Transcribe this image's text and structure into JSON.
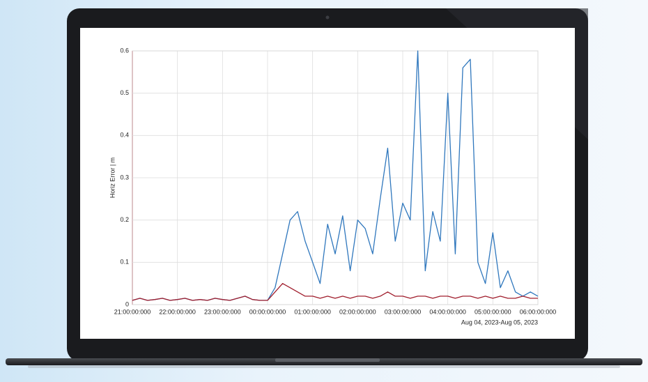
{
  "chart_data": {
    "type": "line",
    "ylabel": "Horiz Error | m",
    "date_range": "Aug 04, 2023-Aug 05, 2023",
    "x": [
      "21:00:00:000",
      "21:10:00:000",
      "21:20:00:000",
      "21:30:00:000",
      "21:40:00:000",
      "21:50:00:000",
      "22:00:00:000",
      "22:10:00:000",
      "22:20:00:000",
      "22:30:00:000",
      "22:40:00:000",
      "22:50:00:000",
      "23:00:00:000",
      "23:10:00:000",
      "23:20:00:000",
      "23:30:00:000",
      "23:40:00:000",
      "23:50:00:000",
      "00:00:00:000",
      "00:10:00:000",
      "00:20:00:000",
      "00:30:00:000",
      "00:40:00:000",
      "00:50:00:000",
      "01:00:00:000",
      "01:10:00:000",
      "01:20:00:000",
      "01:30:00:000",
      "01:40:00:000",
      "01:50:00:000",
      "02:00:00:000",
      "02:10:00:000",
      "02:20:00:000",
      "02:30:00:000",
      "02:40:00:000",
      "02:50:00:000",
      "03:00:00:000",
      "03:10:00:000",
      "03:20:00:000",
      "03:30:00:000",
      "03:40:00:000",
      "03:50:00:000",
      "04:00:00:000",
      "04:10:00:000",
      "04:20:00:000",
      "04:30:00:000",
      "04:40:00:000",
      "04:50:00:000",
      "05:00:00:000",
      "05:10:00:000",
      "05:20:00:000",
      "05:30:00:000",
      "05:40:00:000",
      "05:50:00:000",
      "06:00:00:000"
    ],
    "xticks": [
      "21:00:00:000",
      "22:00:00:000",
      "23:00:00:000",
      "00:00:00:000",
      "01:00:00:000",
      "02:00:00:000",
      "03:00:00:000",
      "04:00:00:000",
      "05:00:00:000",
      "06:00:00:000"
    ],
    "series": [
      {
        "color": "#2f77bd",
        "values": [
          0.01,
          0.015,
          0.01,
          0.012,
          0.015,
          0.01,
          0.012,
          0.015,
          0.01,
          0.012,
          0.01,
          0.015,
          0.012,
          0.01,
          0.015,
          0.02,
          0.012,
          0.01,
          0.01,
          0.04,
          0.12,
          0.2,
          0.22,
          0.15,
          0.1,
          0.05,
          0.19,
          0.12,
          0.21,
          0.08,
          0.2,
          0.18,
          0.12,
          0.25,
          0.37,
          0.15,
          0.24,
          0.2,
          0.6,
          0.08,
          0.22,
          0.15,
          0.5,
          0.12,
          0.56,
          0.58,
          0.1,
          0.05,
          0.17,
          0.04,
          0.08,
          0.03,
          0.02,
          0.03,
          0.02
        ]
      },
      {
        "color": "#a01d2c",
        "values": [
          0.01,
          0.015,
          0.01,
          0.012,
          0.015,
          0.01,
          0.012,
          0.015,
          0.01,
          0.012,
          0.01,
          0.015,
          0.012,
          0.01,
          0.015,
          0.02,
          0.012,
          0.01,
          0.01,
          0.03,
          0.05,
          0.04,
          0.03,
          0.02,
          0.02,
          0.015,
          0.02,
          0.015,
          0.02,
          0.015,
          0.02,
          0.02,
          0.015,
          0.02,
          0.03,
          0.02,
          0.02,
          0.015,
          0.02,
          0.02,
          0.015,
          0.02,
          0.02,
          0.015,
          0.02,
          0.02,
          0.015,
          0.02,
          0.015,
          0.02,
          0.015,
          0.015,
          0.02,
          0.015,
          0.015
        ]
      }
    ],
    "ylim": [
      0,
      0.6
    ],
    "yticks": [
      0,
      0.1,
      0.2,
      0.3,
      0.4,
      0.5,
      0.6
    ],
    "grid": true
  }
}
